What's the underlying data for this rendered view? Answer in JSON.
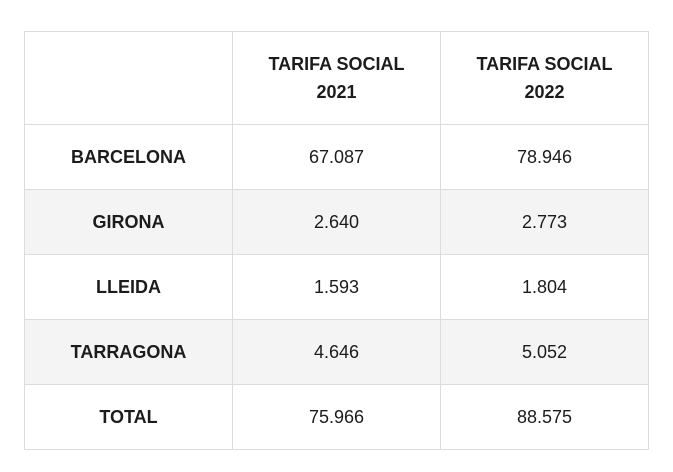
{
  "table": {
    "header": {
      "corner": "",
      "columns": [
        {
          "line1": "TARIFA SOCIAL",
          "line2": "2021"
        },
        {
          "line1": "TARIFA SOCIAL",
          "line2": "2022"
        }
      ]
    },
    "rows": [
      {
        "label": "BARCELONA",
        "v2021": "67.087",
        "v2022": "78.946"
      },
      {
        "label": "GIRONA",
        "v2021": "2.640",
        "v2022": "2.773"
      },
      {
        "label": "LLEIDA",
        "v2021": "1.593",
        "v2022": "1.804"
      },
      {
        "label": "TARRAGONA",
        "v2021": "4.646",
        "v2022": "5.052"
      },
      {
        "label": "TOTAL",
        "v2021": "75.966",
        "v2022": "88.575"
      }
    ]
  },
  "colors": {
    "border": "#dcdcdc",
    "stripe": "#f4f4f4",
    "text": "#1c1c1c"
  }
}
